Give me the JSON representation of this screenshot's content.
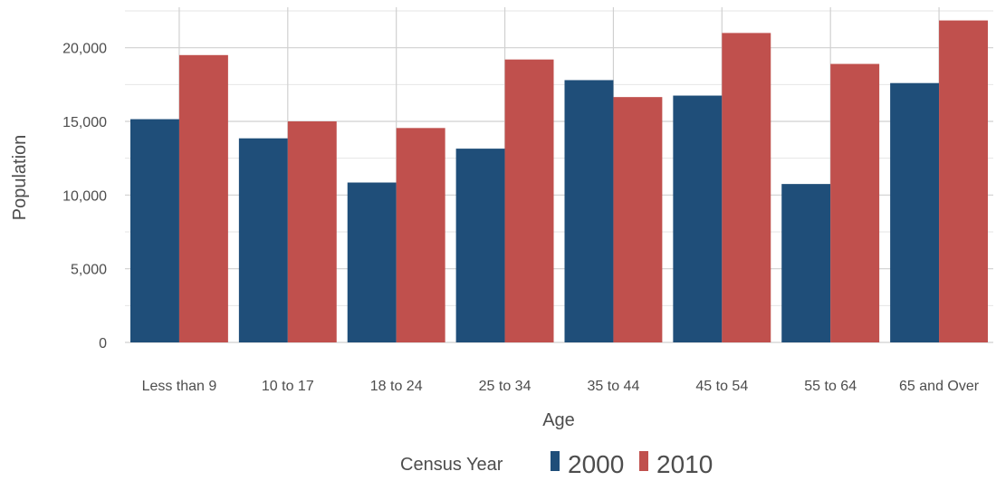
{
  "chart_data": {
    "type": "bar",
    "xlabel": "Age",
    "ylabel": "Population",
    "categories": [
      "Less than 9",
      "10 to 17",
      "18 to 24",
      "25 to 34",
      "35 to 44",
      "45 to 54",
      "55 to 64",
      "65 and Over"
    ],
    "series": [
      {
        "name": "2000",
        "color": "#1f4e79",
        "values": [
          15150,
          13850,
          10850,
          13150,
          17800,
          16750,
          10750,
          17600
        ]
      },
      {
        "name": "2010",
        "color": "#c0504d",
        "values": [
          19500,
          15000,
          14550,
          19200,
          16650,
          21000,
          18900,
          21850
        ]
      }
    ],
    "ylim": [
      0,
      22500
    ],
    "yticks": [
      0,
      5000,
      10000,
      15000,
      20000
    ],
    "ytick_labels": [
      "0",
      "5,000",
      "10,000",
      "15,000",
      "20,000"
    ],
    "grid": true,
    "legend": {
      "title": "Census Year",
      "position": "bottom"
    }
  }
}
